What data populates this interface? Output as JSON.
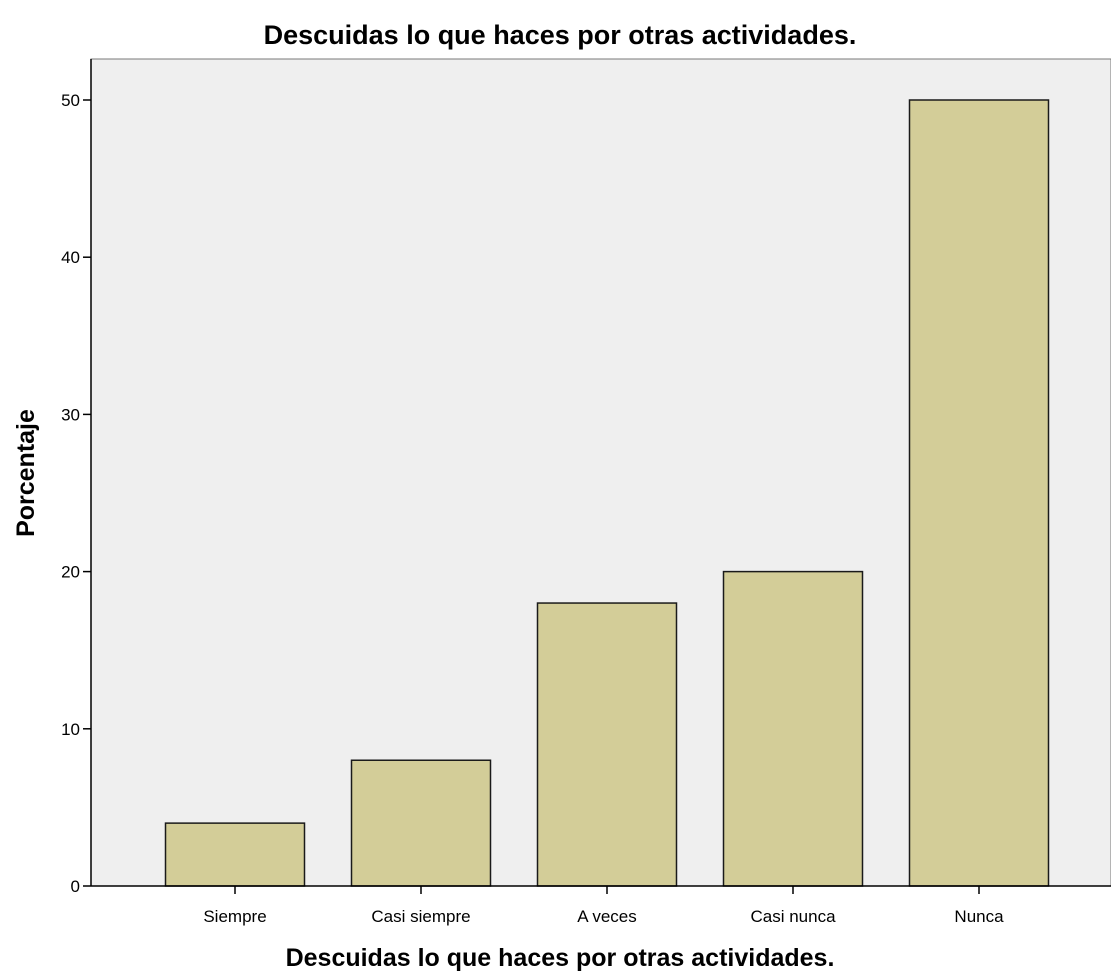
{
  "chart_data": {
    "type": "bar",
    "title": "Descuidas lo que haces por otras actividades.",
    "xlabel": "Descuidas lo que haces por otras actividades.",
    "ylabel": "Porcentaje",
    "categories": [
      "Siempre",
      "Casi siempre",
      "A veces",
      "Casi nunca",
      "Nunca"
    ],
    "values": [
      4,
      8,
      18,
      20,
      50
    ],
    "ylim": [
      0,
      52.7
    ],
    "yticks": [
      0,
      10,
      20,
      30,
      40,
      50
    ],
    "grid": false,
    "legend": "none",
    "colors": {
      "bar_fill": "#d3cd98",
      "bar_stroke": "#1a1a1a",
      "plot_background": "#efefef",
      "axis": "#000000",
      "text": "#000000"
    }
  }
}
